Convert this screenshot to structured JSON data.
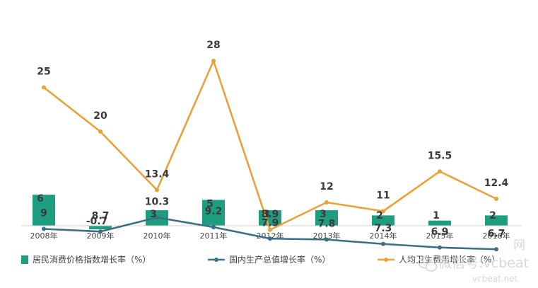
{
  "chart_data": {
    "type": "bar+line",
    "categories": [
      "2008年",
      "2009年",
      "2010年",
      "2011年",
      "2012年",
      "2013年",
      "2014年",
      "2015年",
      "2016年"
    ],
    "series": [
      {
        "name": "居民消费价格指数增长率（%）",
        "kind": "bar",
        "color": "#1e9e80",
        "values": [
          6,
          -0.7,
          3,
          5,
          3,
          3,
          2,
          1,
          2
        ]
      },
      {
        "name": "国内生产总值增长率（%）",
        "kind": "line",
        "color": "#3e6e85",
        "values": [
          9,
          8.7,
          10.3,
          9.2,
          7.9,
          7.8,
          7.3,
          6.9,
          6.7
        ]
      },
      {
        "name": "人均卫生费用增长率（%）",
        "kind": "line",
        "color": "#e8a23a",
        "values": [
          25,
          20,
          13.4,
          28,
          8.9,
          12,
          11,
          15.5,
          12.4
        ]
      }
    ],
    "title": "",
    "xlabel": "",
    "ylabel": "",
    "grid": false,
    "legend_position": "bottom"
  },
  "watermark": {
    "line1": "微信号:vcbeat",
    "line2": "vcbeat.net",
    "partial": "网"
  }
}
